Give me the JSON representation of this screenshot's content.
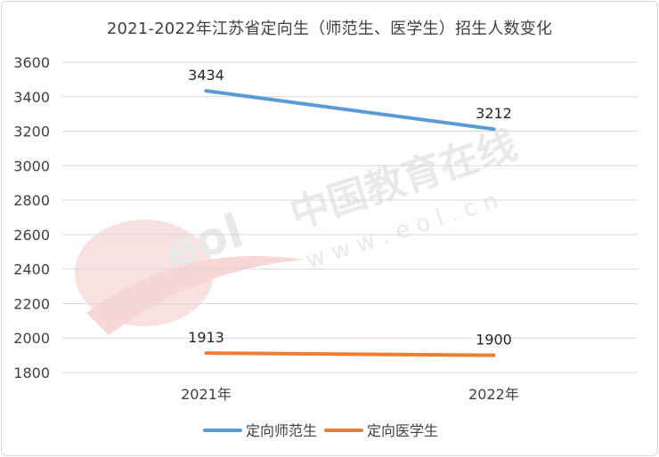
{
  "chart_data": {
    "type": "line",
    "title": "2021-2022年江苏省定向生（师范生、医学生）招生人数变化",
    "categories": [
      "2021年",
      "2022年"
    ],
    "ylim": [
      1800,
      3600
    ],
    "yticks": [
      1800,
      2000,
      2200,
      2400,
      2600,
      2800,
      3000,
      3200,
      3400,
      3600
    ],
    "grid": true,
    "legend_position": "bottom",
    "series": [
      {
        "name": "定向师范生",
        "values": [
          3434,
          3212
        ],
        "color": "#5b9bd5"
      },
      {
        "name": "定向医学生",
        "values": [
          1913,
          1900
        ],
        "color": "#ed7d31"
      }
    ]
  },
  "watermark": {
    "text_cn": "中国教育在线",
    "text_url": "w w w . e o l . c n",
    "logo_text": "eol"
  }
}
